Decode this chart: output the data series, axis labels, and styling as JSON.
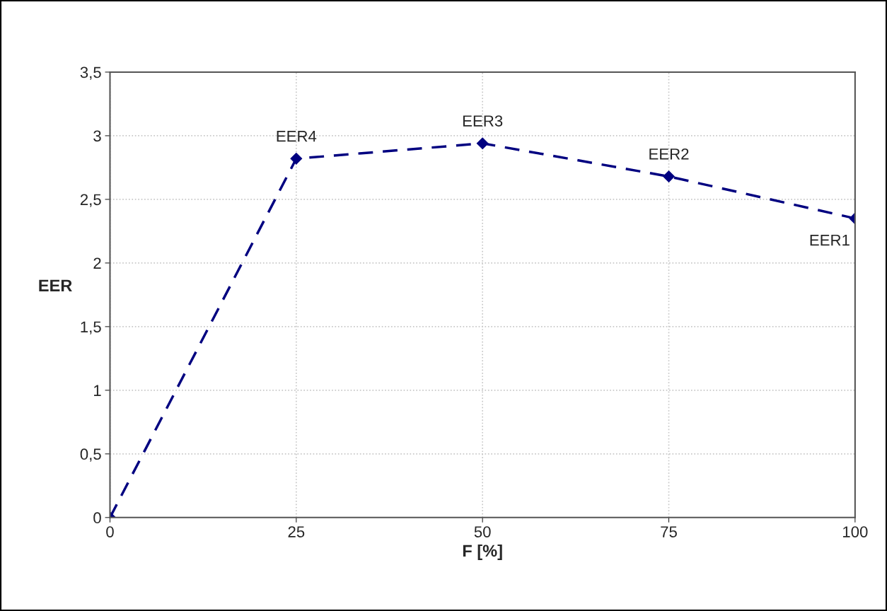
{
  "chart_data": {
    "type": "line",
    "xlabel": "F [%]",
    "ylabel": "EER",
    "x": [
      0,
      25,
      50,
      75,
      100
    ],
    "series": [
      {
        "color": "#000080",
        "values": [
          0,
          2.82,
          2.94,
          2.68,
          2.35
        ]
      }
    ],
    "marker": "diamond",
    "line_style": "dashed",
    "grid": true,
    "xlim": [
      0,
      100
    ],
    "xticks": [
      0,
      25,
      50,
      75,
      100
    ],
    "ylim": [
      0,
      3.5
    ],
    "yticks": [
      0,
      {
        "value": 0.5,
        "label": "0,5"
      },
      1,
      {
        "value": 1.5,
        "label": "1,5"
      },
      2,
      {
        "value": 2.5,
        "label": "2,5"
      },
      3,
      {
        "value": 3.5,
        "label": "3,5"
      }
    ],
    "annotations": [
      {
        "text": "EER1",
        "x": 100,
        "y": 2.35
      },
      {
        "text": "EER2",
        "x": 75,
        "y": 2.68
      },
      {
        "text": "EER3",
        "x": 50,
        "y": 2.94
      },
      {
        "text": "EER4",
        "x": 25,
        "y": 2.82
      }
    ]
  }
}
